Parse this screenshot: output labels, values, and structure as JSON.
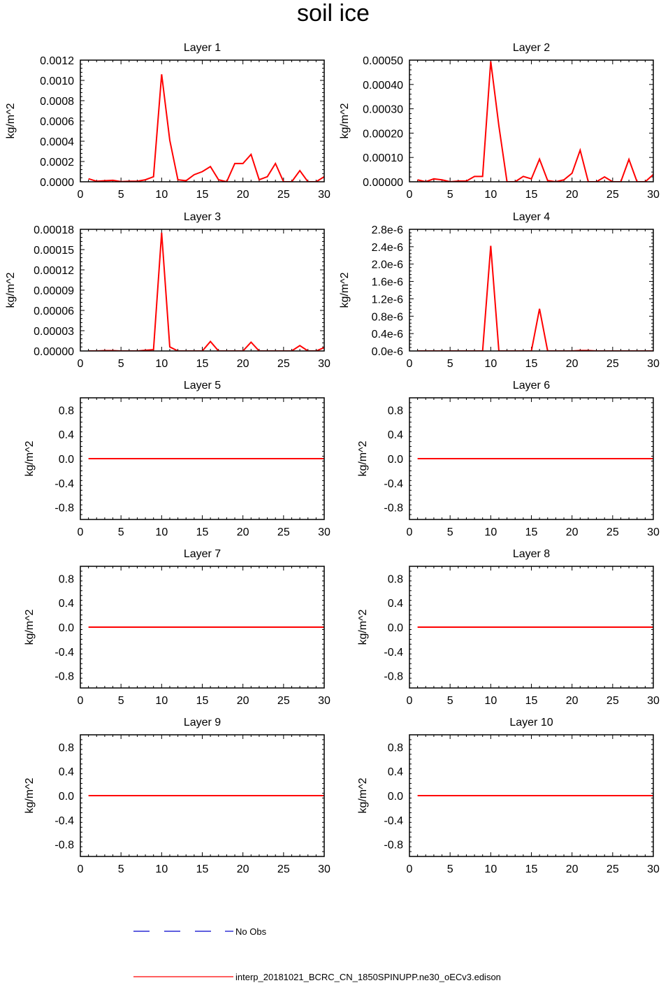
{
  "figure": {
    "title": "soil ice"
  },
  "chart_data": [
    {
      "type": "line",
      "title": "Layer 1",
      "xlabel": "",
      "ylabel": "kg/m^2",
      "xlim": [
        0,
        30
      ],
      "ylim": [
        0,
        0.0012
      ],
      "xticks": [
        "0",
        "5",
        "10",
        "15",
        "20",
        "25",
        "30"
      ],
      "yticks": [
        "0.0000",
        "0.0002",
        "0.0004",
        "0.0006",
        "0.0008",
        "0.0010",
        "0.0012"
      ],
      "x": [
        1,
        2,
        3,
        4,
        5,
        6,
        7,
        8,
        9,
        10,
        11,
        12,
        13,
        14,
        15,
        16,
        17,
        18,
        19,
        20,
        21,
        22,
        23,
        24,
        25,
        26,
        27,
        28,
        29,
        30
      ],
      "series": [
        {
          "name": "interp_20181021_BCRC_CN_1850SPINUPP.ne30_oECv3.edison",
          "values": [
            3e-05,
            5e-06,
            1e-05,
            1.5e-05,
            2e-06,
            5e-06,
            5e-06,
            2e-05,
            5e-05,
            0.00106,
            0.00041,
            2e-05,
            1e-05,
            7e-05,
            0.0001,
            0.00015,
            2e-05,
            0.0,
            0.00018,
            0.00018,
            0.00027,
            2e-05,
            5e-05,
            0.00018,
            0.0,
            0.0,
            0.00011,
            0.0,
            0.0,
            5e-05
          ]
        }
      ]
    },
    {
      "type": "line",
      "title": "Layer 2",
      "xlabel": "",
      "ylabel": "kg/m^2",
      "xlim": [
        0,
        30
      ],
      "ylim": [
        0,
        0.0005
      ],
      "xticks": [
        "0",
        "5",
        "10",
        "15",
        "20",
        "25",
        "30"
      ],
      "yticks": [
        "0.00000",
        "0.00010",
        "0.00020",
        "0.00030",
        "0.00040",
        "0.00050"
      ],
      "x": [
        1,
        2,
        3,
        4,
        5,
        6,
        7,
        8,
        9,
        10,
        11,
        12,
        13,
        14,
        15,
        16,
        17,
        18,
        19,
        20,
        21,
        22,
        23,
        24,
        25,
        26,
        27,
        28,
        29,
        30
      ],
      "series": [
        {
          "name": "interp_20181021_BCRC_CN_1850SPINUPP.ne30_oECv3.edison",
          "values": [
            8e-06,
            0.0,
            1.2e-05,
            8e-06,
            0.0,
            3e-06,
            3e-06,
            2.2e-05,
            2.2e-05,
            0.000495,
            0.00023,
            0.0,
            0.0,
            2.2e-05,
            1.2e-05,
            9.3e-05,
            5e-06,
            0.0,
            8e-06,
            3.5e-05,
            0.00013,
            0.0,
            0.0,
            2e-05,
            0.0,
            0.0,
            9.2e-05,
            0.0,
            0.0,
            3e-05
          ]
        }
      ]
    },
    {
      "type": "line",
      "title": "Layer 3",
      "xlabel": "",
      "ylabel": "kg/m^2",
      "xlim": [
        0,
        30
      ],
      "ylim": [
        0,
        0.00018
      ],
      "xticks": [
        "0",
        "5",
        "10",
        "15",
        "20",
        "25",
        "30"
      ],
      "yticks": [
        "0.00000",
        "0.00003",
        "0.00006",
        "0.00009",
        "0.00012",
        "0.00015",
        "0.00018"
      ],
      "x": [
        1,
        2,
        3,
        4,
        5,
        6,
        7,
        8,
        9,
        10,
        11,
        12,
        13,
        14,
        15,
        16,
        17,
        18,
        19,
        20,
        21,
        22,
        23,
        24,
        25,
        26,
        27,
        28,
        29,
        30
      ],
      "series": [
        {
          "name": "interp_20181021_BCRC_CN_1850SPINUPP.ne30_oECv3.edison",
          "values": [
            0.0,
            0.0,
            5e-07,
            5e-07,
            0.0,
            0.0,
            0.0,
            1e-06,
            2e-06,
            0.000175,
            6e-06,
            0.0,
            0.0,
            0.0,
            0.0,
            1.4e-05,
            0.0,
            0.0,
            0.0,
            0.0,
            1.3e-05,
            0.0,
            0.0,
            0.0,
            0.0,
            0.0,
            8e-06,
            0.0,
            0.0,
            5e-06
          ]
        }
      ]
    },
    {
      "type": "line",
      "title": "Layer 4",
      "xlabel": "",
      "ylabel": "kg/m^2",
      "xlim": [
        0,
        30
      ],
      "ylim": [
        0,
        2.8e-06
      ],
      "xticks": [
        "0",
        "5",
        "10",
        "15",
        "20",
        "25",
        "30"
      ],
      "yticks": [
        "0.0e-6",
        "0.4e-6",
        "0.8e-6",
        "1.2e-6",
        "1.6e-6",
        "2.0e-6",
        "2.4e-6",
        "2.8e-6"
      ],
      "x": [
        1,
        2,
        3,
        4,
        5,
        6,
        7,
        8,
        9,
        10,
        11,
        12,
        13,
        14,
        15,
        16,
        17,
        18,
        19,
        20,
        21,
        22,
        23,
        24,
        25,
        26,
        27,
        28,
        29,
        30
      ],
      "series": [
        {
          "name": "interp_20181021_BCRC_CN_1850SPINUPP.ne30_oECv3.edison",
          "values": [
            0,
            0,
            0,
            0,
            0,
            0,
            0,
            0,
            0,
            2.42e-06,
            0,
            0,
            0,
            0,
            0,
            9.7e-07,
            0,
            0,
            0,
            0,
            1e-08,
            1e-08,
            0,
            0,
            0,
            0,
            0,
            0,
            0,
            0
          ]
        }
      ]
    },
    {
      "type": "line",
      "title": "Layer 5",
      "xlabel": "",
      "ylabel": "kg/m^2",
      "xlim": [
        0,
        30
      ],
      "ylim": [
        -1,
        1
      ],
      "xticks": [
        "0",
        "5",
        "10",
        "15",
        "20",
        "25",
        "30"
      ],
      "yticks": [
        "-0.8",
        "-0.4",
        "0.0",
        "0.4",
        "0.8"
      ],
      "x": [
        1,
        30
      ],
      "series": [
        {
          "name": "interp_20181021_BCRC_CN_1850SPINUPP.ne30_oECv3.edison",
          "values": [
            0,
            0
          ]
        }
      ]
    },
    {
      "type": "line",
      "title": "Layer 6",
      "xlabel": "",
      "ylabel": "kg/m^2",
      "xlim": [
        0,
        30
      ],
      "ylim": [
        -1,
        1
      ],
      "xticks": [
        "0",
        "5",
        "10",
        "15",
        "20",
        "25",
        "30"
      ],
      "yticks": [
        "-0.8",
        "-0.4",
        "0.0",
        "0.4",
        "0.8"
      ],
      "x": [
        1,
        30
      ],
      "series": [
        {
          "name": "interp_20181021_BCRC_CN_1850SPINUPP.ne30_oECv3.edison",
          "values": [
            0,
            0
          ]
        }
      ]
    },
    {
      "type": "line",
      "title": "Layer 7",
      "xlabel": "",
      "ylabel": "kg/m^2",
      "xlim": [
        0,
        30
      ],
      "ylim": [
        -1,
        1
      ],
      "xticks": [
        "0",
        "5",
        "10",
        "15",
        "20",
        "25",
        "30"
      ],
      "yticks": [
        "-0.8",
        "-0.4",
        "0.0",
        "0.4",
        "0.8"
      ],
      "x": [
        1,
        30
      ],
      "series": [
        {
          "name": "interp_20181021_BCRC_CN_1850SPINUPP.ne30_oECv3.edison",
          "values": [
            0,
            0
          ]
        }
      ]
    },
    {
      "type": "line",
      "title": "Layer 8",
      "xlabel": "",
      "ylabel": "kg/m^2",
      "xlim": [
        0,
        30
      ],
      "ylim": [
        -1,
        1
      ],
      "xticks": [
        "0",
        "5",
        "10",
        "15",
        "20",
        "25",
        "30"
      ],
      "yticks": [
        "-0.8",
        "-0.4",
        "0.0",
        "0.4",
        "0.8"
      ],
      "x": [
        1,
        30
      ],
      "series": [
        {
          "name": "interp_20181021_BCRC_CN_1850SPINUPP.ne30_oECv3.edison",
          "values": [
            0,
            0
          ]
        }
      ]
    },
    {
      "type": "line",
      "title": "Layer 9",
      "xlabel": "",
      "ylabel": "kg/m^2",
      "xlim": [
        0,
        30
      ],
      "ylim": [
        -1,
        1
      ],
      "xticks": [
        "0",
        "5",
        "10",
        "15",
        "20",
        "25",
        "30"
      ],
      "yticks": [
        "-0.8",
        "-0.4",
        "0.0",
        "0.4",
        "0.8"
      ],
      "x": [
        1,
        30
      ],
      "series": [
        {
          "name": "interp_20181021_BCRC_CN_1850SPINUPP.ne30_oECv3.edison",
          "values": [
            0,
            0
          ]
        }
      ]
    },
    {
      "type": "line",
      "title": "Layer 10",
      "xlabel": "",
      "ylabel": "kg/m^2",
      "xlim": [
        0,
        30
      ],
      "ylim": [
        -1,
        1
      ],
      "xticks": [
        "0",
        "5",
        "10",
        "15",
        "20",
        "25",
        "30"
      ],
      "yticks": [
        "-0.8",
        "-0.4",
        "0.0",
        "0.4",
        "0.8"
      ],
      "x": [
        1,
        30
      ],
      "series": [
        {
          "name": "interp_20181021_BCRC_CN_1850SPINUPP.ne30_oECv3.edison",
          "values": [
            0,
            0
          ]
        }
      ]
    }
  ],
  "legend": {
    "items": [
      {
        "label": "No Obs",
        "color": "#0000cc",
        "style": "dashed"
      },
      {
        "label": "interp_20181021_BCRC_CN_1850SPINUPP.ne30_oECv3.edison",
        "color": "#ff0000",
        "style": "solid"
      }
    ]
  },
  "colors": {
    "series": "#ff0000",
    "obs": "#0000cc",
    "axes": "#000000"
  }
}
